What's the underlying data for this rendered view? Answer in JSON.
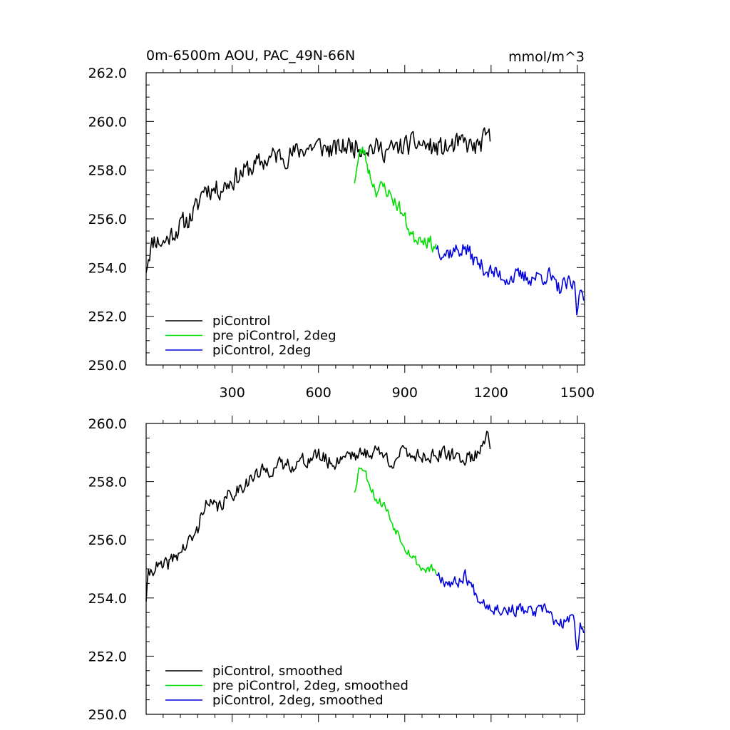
{
  "chart_data": [
    {
      "type": "line",
      "title": "0m-6500m AOU, PAC_49N-66N",
      "units": "mmol/m^3",
      "xlim": [
        1,
        1525
      ],
      "ylim": [
        250.0,
        262.0
      ],
      "xticks": [
        300,
        600,
        900,
        1200,
        1500
      ],
      "xtick_labels": [
        "300",
        "600",
        "900",
        "1200",
        "1500"
      ],
      "yticks": [
        250.0,
        252.0,
        254.0,
        256.0,
        258.0,
        260.0,
        262.0
      ],
      "ytick_labels": [
        "250.0",
        "252.0",
        "254.0",
        "256.0",
        "258.0",
        "260.0",
        "262.0"
      ],
      "legend_position": "bottom-left",
      "series": [
        {
          "name": "piControl",
          "color": "#000000",
          "anchors": [
            [
              1,
              254.0
            ],
            [
              10,
              254.6
            ],
            [
              30,
              255.2
            ],
            [
              60,
              255.0
            ],
            [
              100,
              255.5
            ],
            [
              150,
              256.0
            ],
            [
              180,
              256.5
            ],
            [
              200,
              257.3
            ],
            [
              250,
              257.2
            ],
            [
              300,
              257.6
            ],
            [
              350,
              258.0
            ],
            [
              400,
              258.3
            ],
            [
              450,
              258.6
            ],
            [
              500,
              258.6
            ],
            [
              550,
              258.9
            ],
            [
              600,
              259.0
            ],
            [
              650,
              258.8
            ],
            [
              700,
              259.0
            ],
            [
              750,
              259.0
            ],
            [
              800,
              258.9
            ],
            [
              850,
              258.8
            ],
            [
              900,
              259.0
            ],
            [
              950,
              259.1
            ],
            [
              1000,
              258.9
            ],
            [
              1050,
              258.9
            ],
            [
              1100,
              259.1
            ],
            [
              1150,
              258.9
            ],
            [
              1190,
              259.4
            ],
            [
              1200,
              259.1
            ]
          ],
          "noise": 0.5,
          "seed": 11
        },
        {
          "name": "pre piControl, 2deg",
          "color": "#00dd00",
          "anchors": [
            [
              725,
              257.6
            ],
            [
              740,
              258.5
            ],
            [
              755,
              258.9
            ],
            [
              780,
              257.8
            ],
            [
              800,
              257.2
            ],
            [
              830,
              257.3
            ],
            [
              860,
              256.8
            ],
            [
              880,
              256.5
            ],
            [
              900,
              256.0
            ],
            [
              930,
              255.2
            ],
            [
              960,
              255.3
            ],
            [
              990,
              255.0
            ],
            [
              1010,
              254.9
            ]
          ],
          "noise": 0.35,
          "seed": 23
        },
        {
          "name": "piControl, 2deg",
          "color": "#0000dd",
          "anchors": [
            [
              1010,
              254.9
            ],
            [
              1040,
              254.6
            ],
            [
              1080,
              254.7
            ],
            [
              1110,
              254.8
            ],
            [
              1150,
              254.2
            ],
            [
              1200,
              253.8
            ],
            [
              1250,
              253.6
            ],
            [
              1300,
              253.6
            ],
            [
              1350,
              253.6
            ],
            [
              1400,
              253.7
            ],
            [
              1430,
              253.1
            ],
            [
              1460,
              253.3
            ],
            [
              1490,
              253.2
            ],
            [
              1500,
              252.0
            ],
            [
              1510,
              253.2
            ],
            [
              1525,
              252.9
            ]
          ],
          "noise": 0.4,
          "seed": 37
        }
      ]
    },
    {
      "type": "line",
      "title": "",
      "units": "",
      "xlim": [
        1,
        1525
      ],
      "ylim": [
        250.0,
        260.0
      ],
      "xticks": [
        300,
        600,
        900,
        1200,
        1500
      ],
      "xtick_labels": [],
      "yticks": [
        250.0,
        252.0,
        254.0,
        256.0,
        258.0,
        260.0
      ],
      "ytick_labels": [
        "250.0",
        "252.0",
        "254.0",
        "256.0",
        "258.0",
        "260.0"
      ],
      "legend_position": "bottom-left",
      "series": [
        {
          "name": "piControl, smoothed",
          "color": "#000000",
          "anchors": [
            [
              1,
              254.0
            ],
            [
              10,
              254.8
            ],
            [
              30,
              255.1
            ],
            [
              60,
              255.0
            ],
            [
              100,
              255.4
            ],
            [
              150,
              255.9
            ],
            [
              180,
              256.3
            ],
            [
              200,
              257.2
            ],
            [
              250,
              257.1
            ],
            [
              300,
              257.6
            ],
            [
              350,
              258.0
            ],
            [
              400,
              258.3
            ],
            [
              450,
              258.5
            ],
            [
              500,
              258.6
            ],
            [
              550,
              258.7
            ],
            [
              600,
              258.9
            ],
            [
              650,
              258.6
            ],
            [
              700,
              259.0
            ],
            [
              750,
              258.9
            ],
            [
              800,
              259.1
            ],
            [
              850,
              258.7
            ],
            [
              900,
              259.0
            ],
            [
              950,
              258.9
            ],
            [
              1000,
              258.9
            ],
            [
              1050,
              258.9
            ],
            [
              1100,
              258.8
            ],
            [
              1150,
              258.9
            ],
            [
              1190,
              259.8
            ],
            [
              1200,
              259.1
            ]
          ],
          "noise": 0.3,
          "seed": 41
        },
        {
          "name": "pre piControl, 2deg, smoothed",
          "color": "#00dd00",
          "anchors": [
            [
              725,
              257.7
            ],
            [
              740,
              258.4
            ],
            [
              750,
              258.6
            ],
            [
              780,
              257.9
            ],
            [
              800,
              257.4
            ],
            [
              830,
              257.2
            ],
            [
              860,
              256.5
            ],
            [
              880,
              256.2
            ],
            [
              900,
              255.8
            ],
            [
              930,
              255.4
            ],
            [
              960,
              255.0
            ],
            [
              990,
              255.0
            ],
            [
              1010,
              254.9
            ]
          ],
          "noise": 0.2,
          "seed": 53
        },
        {
          "name": "piControl, 2deg, smoothed",
          "color": "#0000dd",
          "anchors": [
            [
              1010,
              254.9
            ],
            [
              1040,
              254.6
            ],
            [
              1080,
              254.5
            ],
            [
              1110,
              254.8
            ],
            [
              1150,
              254.1
            ],
            [
              1200,
              253.7
            ],
            [
              1250,
              253.6
            ],
            [
              1300,
              253.6
            ],
            [
              1350,
              253.5
            ],
            [
              1400,
              253.6
            ],
            [
              1430,
              253.0
            ],
            [
              1460,
              253.2
            ],
            [
              1490,
              253.3
            ],
            [
              1500,
              252.0
            ],
            [
              1510,
              253.2
            ],
            [
              1525,
              252.9
            ]
          ],
          "noise": 0.25,
          "seed": 67
        }
      ]
    }
  ]
}
